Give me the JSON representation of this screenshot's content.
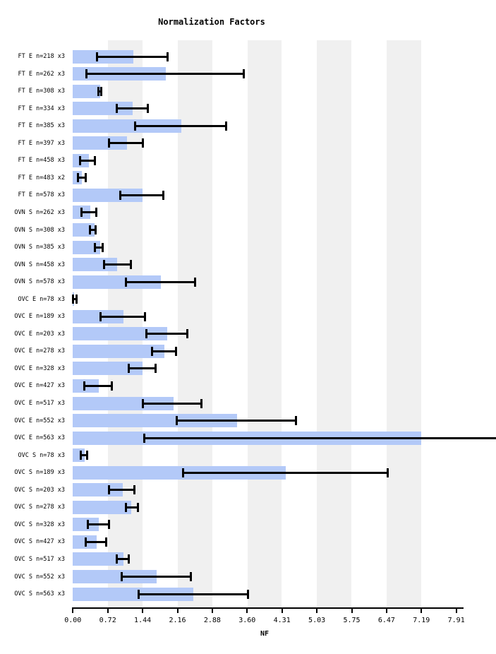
{
  "chart_data": {
    "type": "bar",
    "orientation": "horizontal",
    "title": "Normalization Factors",
    "xlabel": "NF",
    "x_ticks": [
      "0.00",
      "0.72",
      "1.44",
      "2.16",
      "2.88",
      "3.60",
      "4.31",
      "5.03",
      "5.75",
      "6.47",
      "7.19",
      "7.91"
    ],
    "xlim": [
      0,
      8.06
    ],
    "grid": "alternating-bands",
    "gray_bands": [
      [
        0.72,
        1.44
      ],
      [
        2.16,
        2.88
      ],
      [
        3.6,
        4.31
      ],
      [
        5.03,
        5.75
      ],
      [
        6.47,
        7.19
      ]
    ],
    "bar_color": "#b3c9f8",
    "band_color": "#f0f0f0",
    "error_color": "#000000",
    "categories": [
      "FT E n=218 x3",
      "FT E n=262 x3",
      "FT E n=308 x3",
      "FT E n=334 x3",
      "FT E n=385 x3",
      "FT E n=397 x3",
      "FT E n=458 x3",
      "FT E n=483 x2",
      "FT E n=578 x3",
      "OVN S n=262 x3",
      "OVN S n=308 x3",
      "OVN S n=385 x3",
      "OVN S n=458 x3",
      "OVN S n=578 x3",
      "OVC E n=78 x3",
      "OVC E n=189 x3",
      "OVC E n=203 x3",
      "OVC E n=278 x3",
      "OVC E n=328 x3",
      "OVC E n=427 x3",
      "OVC E n=517 x3",
      "OVC E n=552 x3",
      "OVC E n=563 x3",
      "OVC S n=78 x3",
      "OVC S n=189 x3",
      "OVC S n=203 x3",
      "OVC S n=278 x3",
      "OVC S n=328 x3",
      "OVC S n=427 x3",
      "OVC S n=517 x3",
      "OVC S n=552 x3",
      "OVC S n=563 x3"
    ],
    "values": [
      1.25,
      1.91,
      0.57,
      1.23,
      2.24,
      1.11,
      0.33,
      0.19,
      1.43,
      0.36,
      0.45,
      0.56,
      0.92,
      1.82,
      0.03,
      1.04,
      1.95,
      1.89,
      1.44,
      0.53,
      2.07,
      3.39,
      7.19,
      0.24,
      4.39,
      1.03,
      1.21,
      0.53,
      0.49,
      1.04,
      1.73,
      2.49
    ],
    "error_low": [
      0.5,
      0.28,
      0.52,
      0.9,
      1.29,
      0.74,
      0.15,
      0.11,
      0.98,
      0.18,
      0.35,
      0.45,
      0.65,
      1.09,
      0.01,
      0.57,
      1.52,
      1.64,
      1.16,
      0.23,
      1.45,
      2.14,
      1.47,
      0.16,
      2.28,
      0.75,
      1.09,
      0.31,
      0.26,
      0.9,
      1.01,
      1.36
    ],
    "error_high": [
      1.95,
      3.52,
      0.58,
      1.55,
      3.16,
      1.44,
      0.46,
      0.26,
      1.86,
      0.49,
      0.47,
      0.61,
      1.19,
      2.52,
      0.07,
      1.49,
      2.36,
      2.13,
      1.71,
      0.8,
      2.65,
      4.6,
      8.9,
      0.29,
      6.49,
      1.27,
      1.34,
      0.75,
      0.69,
      1.15,
      2.44,
      3.61
    ],
    "note_clipped_error": "OVC E n=563 x3 upper error bar extends past right edge of image"
  }
}
